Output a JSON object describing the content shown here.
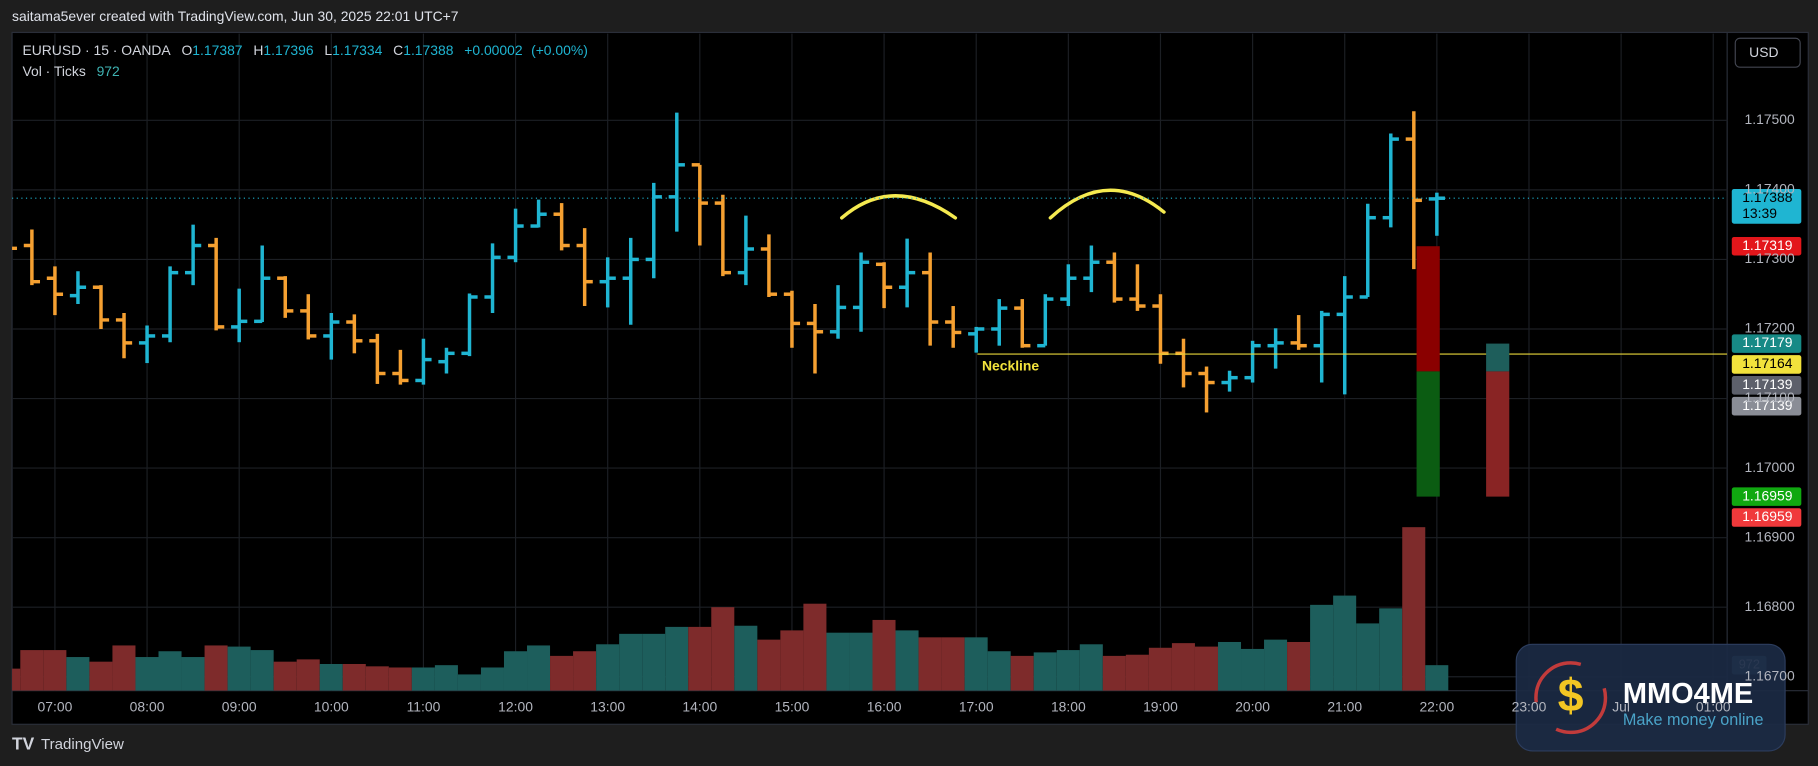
{
  "chart_data": {
    "type": "ohlc",
    "credit": "saitama5ever created with TradingView.com, Jun 30, 2025 22:01 UTC+7",
    "title": "EURUSD · 15 · OANDA",
    "legend": {
      "open_label": "O",
      "high_label": "H",
      "low_label": "L",
      "close_label": "C",
      "change": "+0.00002",
      "change_pct": "(+0.00%)"
    },
    "volume_legend": "Vol · Ticks",
    "currency": "USD",
    "countdown": "13:39",
    "up_color": "#1fb5d2",
    "down_color": "#f5a031",
    "volume_up_color": "#1d5e5c",
    "volume_down_color": "#7e2b2b",
    "bars": {
      "open": [
        1.1732,
        1.1732,
        1.17273,
        1.17248,
        1.1726,
        1.17213,
        1.1718,
        1.1719,
        1.17281,
        1.1732,
        1.17203,
        1.17211,
        1.17273,
        1.17226,
        1.1719,
        1.1721,
        1.17183,
        1.17136,
        1.17126,
        1.17153,
        1.17165,
        1.17246,
        1.17303,
        1.17348,
        1.17365,
        1.1732,
        1.17268,
        1.17273,
        1.173,
        1.1739,
        1.17436,
        1.17381,
        1.17281,
        1.17315,
        1.1725,
        1.17208,
        1.17196,
        1.17231,
        1.17293,
        1.1726,
        1.17281,
        1.1721,
        1.17193,
        1.172,
        1.1723,
        1.17176,
        1.17243,
        1.17273,
        1.17296,
        1.17243,
        1.17233,
        1.17165,
        1.17136,
        1.17123,
        1.1713,
        1.17176,
        1.1718,
        1.17176,
        1.17221,
        1.17246,
        1.1736,
        1.17473,
        1.17387
      ],
      "high": [
        1.17323,
        1.17343,
        1.1729,
        1.17283,
        1.17263,
        1.17223,
        1.17205,
        1.1729,
        1.1735,
        1.17331,
        1.17258,
        1.1732,
        1.17276,
        1.1725,
        1.17223,
        1.17221,
        1.17193,
        1.1717,
        1.17186,
        1.17173,
        1.17251,
        1.17323,
        1.17373,
        1.17386,
        1.17381,
        1.17345,
        1.17303,
        1.17331,
        1.1741,
        1.17511,
        1.17436,
        1.17393,
        1.17363,
        1.17336,
        1.17255,
        1.17236,
        1.17263,
        1.1731,
        1.17296,
        1.1733,
        1.1731,
        1.17233,
        1.17203,
        1.17243,
        1.17243,
        1.1725,
        1.17293,
        1.1732,
        1.1731,
        1.17293,
        1.1725,
        1.17186,
        1.17146,
        1.1714,
        1.17183,
        1.17201,
        1.1722,
        1.17226,
        1.17276,
        1.1738,
        1.17481,
        1.17513,
        1.17396
      ],
      "low": [
        1.17316,
        1.17263,
        1.1722,
        1.17236,
        1.172,
        1.17158,
        1.17151,
        1.17181,
        1.17263,
        1.17198,
        1.17181,
        1.1721,
        1.17216,
        1.17185,
        1.17156,
        1.17165,
        1.17121,
        1.1712,
        1.1712,
        1.17136,
        1.17161,
        1.17223,
        1.17296,
        1.17346,
        1.17313,
        1.17233,
        1.17231,
        1.17206,
        1.17273,
        1.1734,
        1.1732,
        1.17276,
        1.17263,
        1.17246,
        1.17173,
        1.17136,
        1.17186,
        1.17196,
        1.1723,
        1.17231,
        1.17176,
        1.17173,
        1.17166,
        1.17176,
        1.17173,
        1.17176,
        1.17233,
        1.17253,
        1.17238,
        1.17226,
        1.1715,
        1.17116,
        1.1708,
        1.1711,
        1.17123,
        1.17143,
        1.1717,
        1.17123,
        1.17106,
        1.17246,
        1.17346,
        1.17286,
        1.17334
      ],
      "close": [
        1.17316,
        1.17268,
        1.1725,
        1.1726,
        1.17213,
        1.1718,
        1.1719,
        1.17281,
        1.1732,
        1.17203,
        1.17211,
        1.17273,
        1.17226,
        1.1719,
        1.1721,
        1.17183,
        1.17136,
        1.17126,
        1.17156,
        1.17165,
        1.17246,
        1.17303,
        1.17348,
        1.17365,
        1.1732,
        1.17268,
        1.17273,
        1.173,
        1.1739,
        1.17436,
        1.17381,
        1.17281,
        1.17315,
        1.1725,
        1.17208,
        1.17196,
        1.17231,
        1.17296,
        1.1726,
        1.17281,
        1.1721,
        1.17195,
        1.172,
        1.1723,
        1.17176,
        1.17243,
        1.17273,
        1.17296,
        1.17243,
        1.17233,
        1.17165,
        1.17136,
        1.17123,
        1.1713,
        1.17176,
        1.1718,
        1.17176,
        1.17221,
        1.17246,
        1.1736,
        1.17473,
        1.17385,
        1.17388
      ]
    },
    "volume": [
      840,
      1547,
      1547,
      1282,
      1105,
      1724,
      1282,
      1503,
      1282,
      1724,
      1680,
      1547,
      1105,
      1193,
      1017,
      1017,
      928,
      884,
      884,
      972,
      619,
      884,
      1503,
      1724,
      1326,
      1503,
      1768,
      2166,
      2166,
      2431,
      2431,
      3182,
      2475,
      1945,
      2298,
      3315,
      2210,
      2210,
      2696,
      2298,
      2033,
      2033,
      2033,
      1503,
      1326,
      1459,
      1547,
      1768,
      1326,
      1370,
      1635,
      1812,
      1680,
      1856,
      1591,
      1945,
      1856,
      3271,
      3624,
      2564,
      3138,
      6232,
      972
    ],
    "volume_lim": [
      0,
      25000
    ],
    "xtick_labels": [
      "07:00",
      "08:00",
      "09:00",
      "10:00",
      "11:00",
      "12:00",
      "13:00",
      "14:00",
      "15:00",
      "16:00",
      "17:00",
      "18:00",
      "19:00",
      "20:00",
      "21:00",
      "22:00",
      "23:00",
      "Jul",
      "01:00"
    ],
    "ylim": [
      1.1668,
      1.17623
    ],
    "yticks": [
      {
        "value": 1.175,
        "label": "1.17500"
      },
      {
        "value": 1.174,
        "label": "1.17400"
      },
      {
        "value": 1.173,
        "label": "1.17300"
      },
      {
        "value": 1.172,
        "label": "1.17200"
      },
      {
        "value": 1.171,
        "label": "1.17100"
      },
      {
        "value": 1.17,
        "label": "1.17000"
      },
      {
        "value": 1.169,
        "label": "1.16900"
      },
      {
        "value": 1.168,
        "label": "1.16800"
      },
      {
        "value": 1.167,
        "label": "1.16700"
      }
    ],
    "grid": true,
    "neckline": {
      "label": "Neckline",
      "value": 1.17164,
      "color": "#e8d63a",
      "label_color": "#f2e23c"
    },
    "positions": [
      {
        "upper": 1.17319,
        "entry": 1.17139,
        "lower": 1.16959,
        "upper_color": "#8a0000",
        "lower_color": "#0b5c12",
        "upper_label_color": "#e3161b",
        "entry_label_color": "#5d606b",
        "lower_label_color": "#10a810"
      },
      {
        "upper": 1.17179,
        "entry": 1.17139,
        "lower": 1.16959,
        "upper_color": "#1e5e5b",
        "lower_color": "#892424",
        "upper_label_color": "#178a86",
        "entry_label_color": "#8a8d96",
        "lower_label_color": "#f0393b"
      }
    ],
    "footer": "TradingView",
    "watermark": {
      "name": "MMO4ME",
      "tagline": "Make money online"
    }
  }
}
